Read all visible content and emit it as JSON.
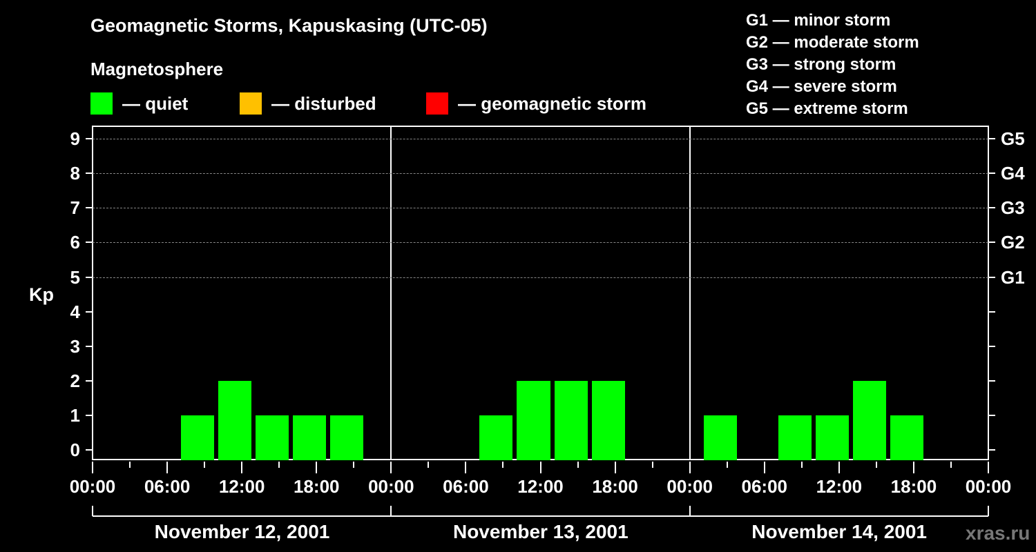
{
  "header": {
    "title": "Geomagnetic Storms, Kapuskasing (UTC-05)",
    "subtitle": "Magnetosphere"
  },
  "legend": {
    "items": [
      {
        "label": "— quiet",
        "color": "#00ff00"
      },
      {
        "label": "— disturbed",
        "color": "#ffc000"
      },
      {
        "label": "— geomagnetic storm",
        "color": "#ff0000"
      }
    ]
  },
  "g_scale_legend": [
    "G1 — minor storm",
    "G2 — moderate storm",
    "G3 — strong storm",
    "G4 — severe storm",
    "G5 — extreme storm"
  ],
  "axes": {
    "y_label": "Kp",
    "y_ticks": [
      "0",
      "1",
      "2",
      "3",
      "4",
      "5",
      "6",
      "7",
      "8",
      "9"
    ],
    "right_ticks": [
      "G1",
      "G2",
      "G3",
      "G4",
      "G5"
    ],
    "x_ticks": [
      "00:00",
      "06:00",
      "12:00",
      "18:00",
      "00:00",
      "06:00",
      "12:00",
      "18:00",
      "00:00",
      "06:00",
      "12:00",
      "18:00",
      "00:00"
    ],
    "dates": [
      "November 12, 2001",
      "November 13, 2001",
      "November 14, 2001"
    ]
  },
  "watermark": "xras.ru",
  "chart_data": {
    "type": "bar",
    "title": "Geomagnetic Storms, Kapuskasing (UTC-05)",
    "xlabel": "",
    "ylabel": "Kp",
    "ylim": [
      0,
      9
    ],
    "grid": "dashed horizontal at Kp 5-9",
    "right_axis": {
      "G1": 5,
      "G2": 6,
      "G3": 7,
      "G4": 8,
      "G5": 9
    },
    "legend": [
      {
        "name": "quiet",
        "color": "#00ff00"
      },
      {
        "name": "disturbed",
        "color": "#ffc000"
      },
      {
        "name": "geomagnetic storm",
        "color": "#ff0000"
      }
    ],
    "interval_hours": 3,
    "days": [
      {
        "date": "November 12, 2001",
        "bars": [
          {
            "start": "07:00",
            "kp": 1,
            "status": "quiet"
          },
          {
            "start": "10:00",
            "kp": 2,
            "status": "quiet"
          },
          {
            "start": "13:00",
            "kp": 1,
            "status": "quiet"
          },
          {
            "start": "16:00",
            "kp": 1,
            "status": "quiet"
          },
          {
            "start": "19:00",
            "kp": 1,
            "status": "quiet"
          }
        ]
      },
      {
        "date": "November 13, 2001",
        "bars": [
          {
            "start": "07:00",
            "kp": 1,
            "status": "quiet"
          },
          {
            "start": "10:00",
            "kp": 2,
            "status": "quiet"
          },
          {
            "start": "13:00",
            "kp": 2,
            "status": "quiet"
          },
          {
            "start": "16:00",
            "kp": 2,
            "status": "quiet"
          }
        ]
      },
      {
        "date": "November 14, 2001",
        "bars": [
          {
            "start": "01:00",
            "kp": 1,
            "status": "quiet"
          },
          {
            "start": "07:00",
            "kp": 1,
            "status": "quiet"
          },
          {
            "start": "10:00",
            "kp": 1,
            "status": "quiet"
          },
          {
            "start": "13:00",
            "kp": 2,
            "status": "quiet"
          },
          {
            "start": "16:00",
            "kp": 1,
            "status": "quiet"
          }
        ]
      }
    ]
  }
}
